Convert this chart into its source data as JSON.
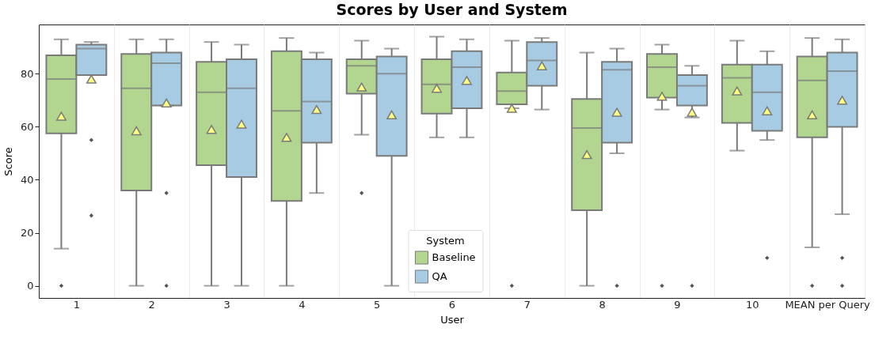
{
  "chart_data": {
    "type": "box",
    "title": "Scores by User and System",
    "xlabel": "User",
    "ylabel": "Score",
    "legend_title": "System",
    "categories": [
      "1",
      "2",
      "3",
      "4",
      "5",
      "6",
      "7",
      "8",
      "9",
      "10",
      "MEAN per Query"
    ],
    "ylim": [
      -4.6,
      98.6
    ],
    "yticks": [
      0,
      20,
      40,
      60,
      80
    ],
    "grid": "x",
    "legend": "bottom",
    "series": [
      {
        "name": "Baseline",
        "color": "#b2d690",
        "boxes": [
          {
            "low": 14,
            "q1": 57.5,
            "median": 78,
            "q3": 87,
            "high": 93,
            "mean": 64,
            "outliers": [
              0
            ]
          },
          {
            "low": 0,
            "q1": 36,
            "median": 74.5,
            "q3": 87.5,
            "high": 93,
            "mean": 58.5
          },
          {
            "low": 0,
            "q1": 45.5,
            "median": 73,
            "q3": 84.5,
            "high": 92,
            "mean": 59
          },
          {
            "low": 0,
            "q1": 32,
            "median": 66,
            "q3": 88.5,
            "high": 93.5,
            "mean": 56
          },
          {
            "low": 57,
            "q1": 72.5,
            "median": 83,
            "q3": 85.5,
            "high": 92.5,
            "mean": 75,
            "outliers": [
              35
            ]
          },
          {
            "low": 56,
            "q1": 65,
            "median": 76,
            "q3": 85.5,
            "high": 94,
            "mean": 74.5
          },
          {
            "low": 67,
            "q1": 68.5,
            "median": 73.5,
            "q3": 80.5,
            "high": 92.5,
            "mean": 67,
            "outliers": [
              0
            ]
          },
          {
            "low": 0,
            "q1": 28.5,
            "median": 59.5,
            "q3": 70.5,
            "high": 88,
            "mean": 49.5
          },
          {
            "low": 66.5,
            "q1": 71,
            "median": 82.5,
            "q3": 87.5,
            "high": 91,
            "mean": 71.5,
            "outliers": [
              0
            ]
          },
          {
            "low": 51,
            "q1": 61.5,
            "median": 78.5,
            "q3": 83.5,
            "high": 92.5,
            "mean": 73.5
          },
          {
            "low": 14.5,
            "q1": 56,
            "median": 77.5,
            "q3": 86.5,
            "high": 93.5,
            "mean": 64.5,
            "outliers": [
              0
            ]
          }
        ]
      },
      {
        "name": "QA",
        "color": "#a6cbe3",
        "boxes": [
          {
            "low": 79.5,
            "q1": 79.5,
            "median": 89.5,
            "q3": 91,
            "high": 92,
            "mean": 78,
            "outliers": [
              55,
              26.5
            ]
          },
          {
            "low": 68,
            "q1": 68,
            "median": 84,
            "q3": 88,
            "high": 93,
            "mean": 69,
            "outliers": [
              35,
              0
            ]
          },
          {
            "low": 0,
            "q1": 41,
            "median": 74.5,
            "q3": 85.5,
            "high": 91,
            "mean": 61
          },
          {
            "low": 35,
            "q1": 54,
            "median": 69.5,
            "q3": 85.5,
            "high": 88,
            "mean": 66.5
          },
          {
            "low": 0,
            "q1": 49,
            "median": 80,
            "q3": 86.5,
            "high": 89.5,
            "mean": 64.5
          },
          {
            "low": 56,
            "q1": 67,
            "median": 82.5,
            "q3": 88.5,
            "high": 93,
            "mean": 77.5
          },
          {
            "low": 66.5,
            "q1": 75.5,
            "median": 85,
            "q3": 92,
            "high": 93.5,
            "mean": 83
          },
          {
            "low": 50,
            "q1": 54,
            "median": 81.5,
            "q3": 84.5,
            "high": 89.5,
            "mean": 65.5,
            "outliers": [
              0
            ]
          },
          {
            "low": 63.5,
            "q1": 68,
            "median": 75.5,
            "q3": 79.5,
            "high": 83,
            "mean": 65.5,
            "outliers": [
              0
            ]
          },
          {
            "low": 55,
            "q1": 58.5,
            "median": 73,
            "q3": 83.5,
            "high": 88.5,
            "mean": 66,
            "outliers": [
              10.5
            ]
          },
          {
            "low": 27,
            "q1": 60,
            "median": 81,
            "q3": 88,
            "high": 93,
            "mean": 70,
            "outliers": [
              10.5,
              0
            ]
          }
        ]
      }
    ]
  }
}
